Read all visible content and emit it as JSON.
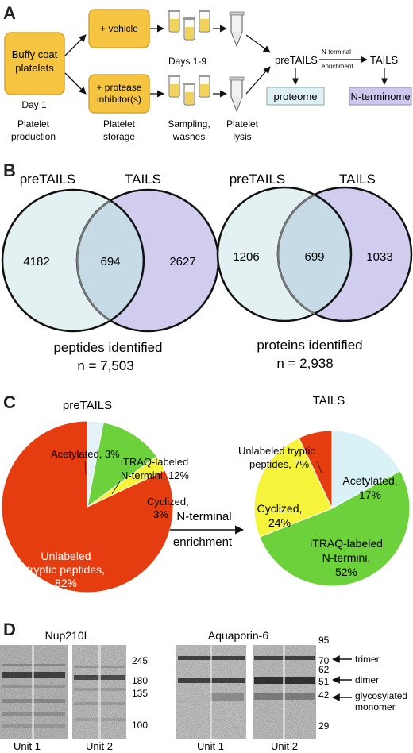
{
  "panels": {
    "a": "A",
    "b": "B",
    "c": "C",
    "d": "D"
  },
  "panelA": {
    "buffy_coat": [
      "Buffy coat",
      "platelets"
    ],
    "day1": "Day 1",
    "vehicle": "+ vehicle",
    "inhibitor": [
      "+ protease",
      "inhibitor(s)"
    ],
    "days": "Days 1-9",
    "pretails": "preTAILS",
    "nterm_enrich": [
      "N-terminal",
      "enrichment"
    ],
    "tails": "TAILS",
    "proteome": "proteome",
    "nterminome": "N-terminome",
    "step_production": [
      "Platelet",
      "production"
    ],
    "step_storage": [
      "Platelet",
      "storage"
    ],
    "step_sampling": [
      "Sampling,",
      "washes"
    ],
    "step_lysis": [
      "Platelet",
      "lysis"
    ],
    "colors": {
      "box": "#f5c542",
      "box_border": "#d8a32a",
      "proteome_fill": "#def0f2",
      "nterminome_fill": "#cfc8ee"
    }
  },
  "panelB": {
    "left": {
      "label1": "preTAILS",
      "label2": "TAILS",
      "only1": "4182",
      "both": "694",
      "only2": "2627",
      "caption": "peptides identified",
      "n": "n = 7,503"
    },
    "right": {
      "label1": "preTAILS",
      "label2": "TAILS",
      "only1": "1206",
      "both": "699",
      "only2": "1033",
      "caption": "proteins  identified",
      "n": "n = 2,938"
    },
    "colors": {
      "pretails": "#e3f1f3",
      "tails": "#d0cdef",
      "overlap": "#c6dbe6"
    }
  },
  "panelC": {
    "left_title": "preTAILS",
    "right_title": "TAILS",
    "arrow_label": [
      "N-terminal",
      "enrichment"
    ],
    "left_labels": {
      "acetylated": "Acetylated, 3%",
      "itraq": [
        "iTRAQ-labeled",
        "N-termini, 12%"
      ],
      "cyclized": [
        "Cyclized,",
        "3%"
      ],
      "unlabeled": [
        "Unlabeled",
        "tryptic peptides,",
        "82%"
      ]
    },
    "right_labels": {
      "unlabeled": [
        "Unlabeled tryptic",
        "peptides, 7%"
      ],
      "acetylated": [
        "Acetylated,",
        "17%"
      ],
      "cyclized": [
        "Cyclized,",
        "24%"
      ],
      "itraq": [
        "iTRAQ-labeled",
        "N-termini,",
        "52%"
      ]
    }
  },
  "chart_data": [
    {
      "type": "pie",
      "title": "preTAILS",
      "categories": [
        "Acetylated",
        "iTRAQ-labeled N-termini",
        "Cyclized",
        "Unlabeled tryptic peptides"
      ],
      "values": [
        3,
        12,
        3,
        82
      ],
      "colors": [
        "#e4f2f7",
        "#6dd13c",
        "#f6f43a",
        "#e63d10"
      ]
    },
    {
      "type": "pie",
      "title": "TAILS",
      "categories": [
        "Acetylated",
        "iTRAQ-labeled N-termini",
        "Cyclized",
        "Unlabeled tryptic peptides"
      ],
      "values": [
        17,
        52,
        24,
        7
      ],
      "colors": [
        "#d8f2f5",
        "#6dd13c",
        "#f6f43a",
        "#e63d10"
      ]
    }
  ],
  "panelD": {
    "nup_title": "Nup210L",
    "aqp_title": "Aquaporin-6",
    "nup_markers": [
      "245",
      "180",
      "135",
      "100"
    ],
    "aqp_markers": [
      "95",
      "70",
      "62",
      "51",
      "42",
      "29"
    ],
    "annot_trimer": "trimer",
    "annot_dimer": "dimer",
    "annot_mono": [
      "glycosylated",
      "monomer"
    ],
    "unit1": "Unit 1",
    "unit2": "Unit 2"
  }
}
